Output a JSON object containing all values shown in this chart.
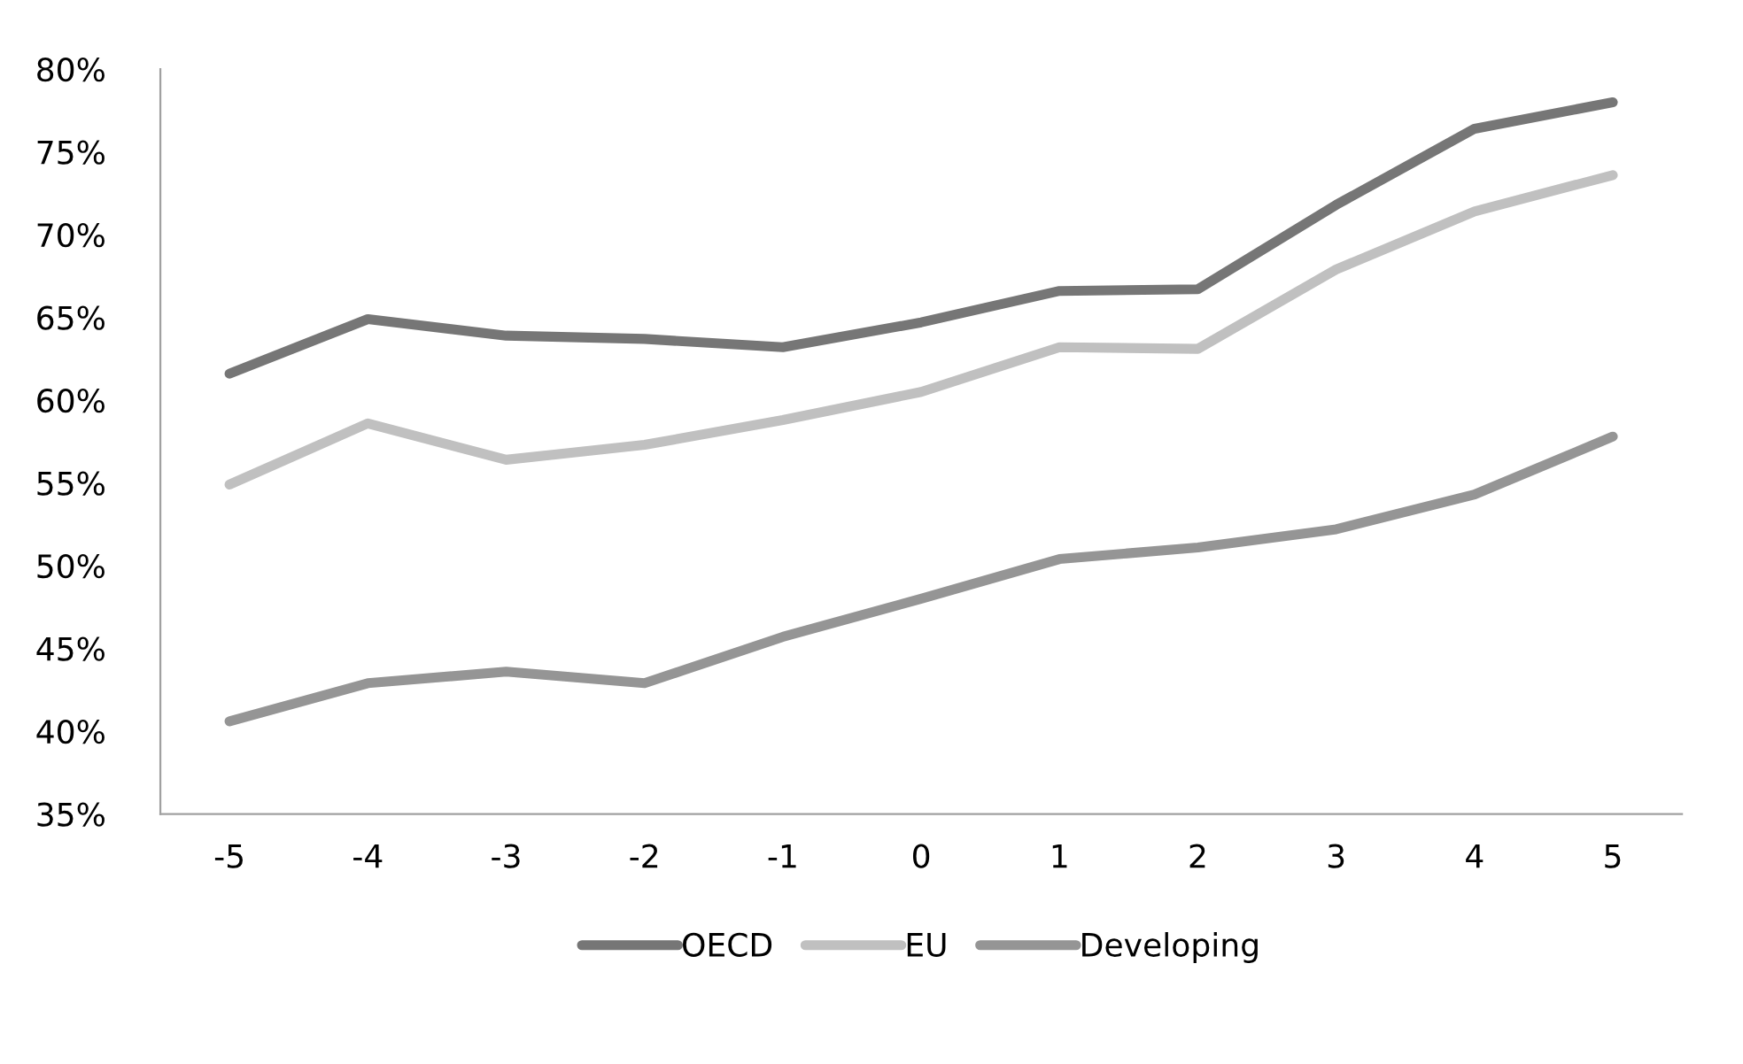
{
  "chart_data": {
    "type": "line",
    "categories": [
      "-5",
      "-4",
      "-3",
      "-2",
      "-1",
      "0",
      "1",
      "2",
      "3",
      "4",
      "5"
    ],
    "series": [
      {
        "name": "OECD",
        "color": "#767676",
        "values": [
          61.6,
          64.9,
          63.9,
          63.7,
          63.2,
          64.7,
          66.6,
          66.7,
          71.8,
          76.4,
          78.0
        ]
      },
      {
        "name": "EU",
        "color": "#c0c0c0",
        "values": [
          54.9,
          58.6,
          56.4,
          57.3,
          58.8,
          60.5,
          63.2,
          63.1,
          67.9,
          71.4,
          73.6
        ]
      },
      {
        "name": "Developing",
        "color": "#959595",
        "values": [
          40.6,
          42.9,
          43.6,
          42.9,
          45.7,
          48.0,
          50.4,
          51.1,
          52.2,
          54.3,
          57.8
        ]
      }
    ],
    "ylim": [
      35,
      80
    ],
    "yticks": [
      {
        "value": 35,
        "label": "35%"
      },
      {
        "value": 40,
        "label": "40%"
      },
      {
        "value": 45,
        "label": "45%"
      },
      {
        "value": 50,
        "label": "50%"
      },
      {
        "value": 55,
        "label": "55%"
      },
      {
        "value": 60,
        "label": "60%"
      },
      {
        "value": 65,
        "label": "65%"
      },
      {
        "value": 70,
        "label": "70%"
      },
      {
        "value": 75,
        "label": "75%"
      },
      {
        "value": 80,
        "label": "80%"
      }
    ],
    "grid": false,
    "legend": "bottom",
    "marker": "none",
    "line_style": "solid"
  }
}
